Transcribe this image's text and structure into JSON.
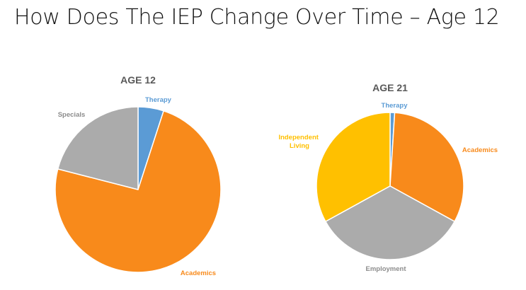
{
  "slide": {
    "title": "How Does The IEP Change Over Time – Age 12"
  },
  "colors": {
    "therapy": "#5B9BD5",
    "academics": "#F88A1B",
    "specials": "#ABABAB",
    "employment": "#ABABAB",
    "independent_living": "#FFC000",
    "label_gray": "#8C8C8C",
    "title_gray": "#595959"
  },
  "chart_data": [
    {
      "type": "pie",
      "title": "AGE 12",
      "start_angle_deg": 0,
      "slices": [
        {
          "label": "Therapy",
          "value": 5,
          "color": "#5B9BD5"
        },
        {
          "label": "Academics",
          "value": 74,
          "color": "#F88A1B"
        },
        {
          "label": "Specials",
          "value": 21,
          "color": "#ABABAB"
        }
      ]
    },
    {
      "type": "pie",
      "title": "AGE 21",
      "start_angle_deg": 0,
      "slices": [
        {
          "label": "Therapy",
          "value": 1,
          "color": "#5B9BD5"
        },
        {
          "label": "Academics",
          "value": 32,
          "color": "#F88A1B"
        },
        {
          "label": "Employment",
          "value": 34,
          "color": "#ABABAB"
        },
        {
          "label": "Independent Living",
          "value": 33,
          "color": "#FFC000"
        }
      ]
    }
  ]
}
